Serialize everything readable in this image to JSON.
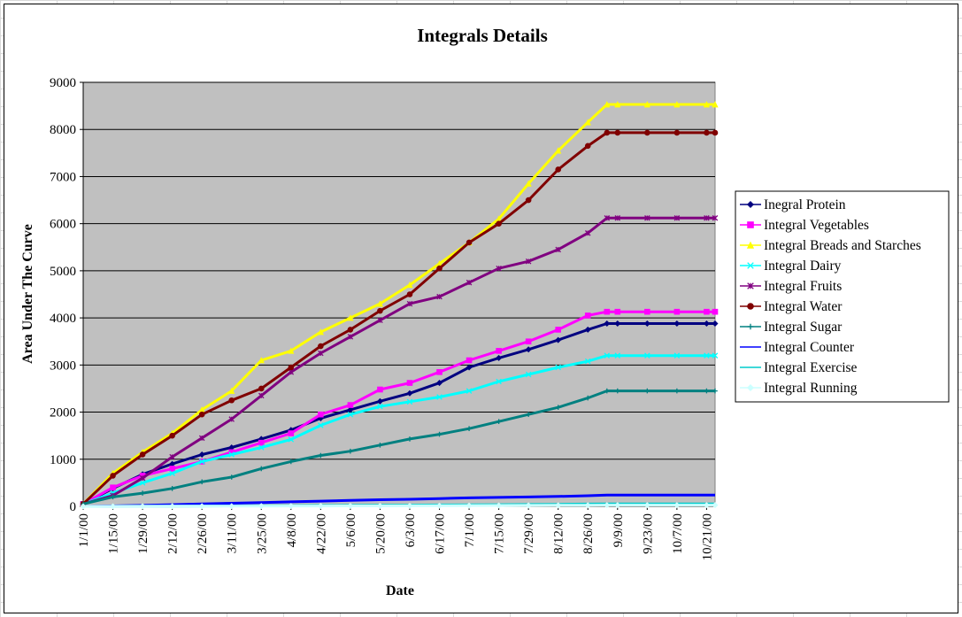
{
  "chart_data": {
    "type": "line",
    "title": "Integrals Details",
    "xlabel": "Date",
    "ylabel": "Area Under The Curve",
    "ylim": [
      0,
      9000
    ],
    "yticks": [
      "0",
      "1000",
      "2000",
      "3000",
      "4000",
      "5000",
      "6000",
      "7000",
      "8000",
      "9000"
    ],
    "xticks": [
      "1/1/00",
      "1/15/00",
      "1/29/00",
      "2/12/00",
      "2/26/00",
      "3/11/00",
      "3/25/00",
      "4/8/00",
      "4/22/00",
      "5/6/00",
      "5/20/00",
      "6/3/00",
      "6/17/00",
      "7/1/00",
      "7/15/00",
      "7/29/00",
      "8/12/00",
      "8/26/00",
      "9/9/00",
      "9/23/00",
      "10/7/00",
      "10/21/00"
    ],
    "x_domain": [
      "1/1/00",
      "10/25/00"
    ],
    "plot_background": "#c0c0c0",
    "grid": true,
    "legend_position": "right",
    "x": [
      "1/1/00",
      "1/15/00",
      "1/29/00",
      "2/12/00",
      "2/26/00",
      "3/11/00",
      "3/25/00",
      "4/8/00",
      "4/22/00",
      "5/6/00",
      "5/20/00",
      "6/3/00",
      "6/17/00",
      "7/1/00",
      "7/15/00",
      "7/29/00",
      "8/12/00",
      "8/26/00",
      "9/4/00",
      "9/9/00",
      "9/23/00",
      "10/7/00",
      "10/21/00",
      "10/25/00"
    ],
    "series": [
      {
        "name": "Inegral Protein",
        "color": "#000080",
        "marker": "diamond",
        "values": [
          50,
          380,
          680,
          900,
          1100,
          1250,
          1430,
          1620,
          1870,
          2050,
          2230,
          2400,
          2620,
          2950,
          3150,
          3330,
          3530,
          3750,
          3880,
          3880,
          3880,
          3880,
          3880,
          3880
        ]
      },
      {
        "name": "Integral Vegetables",
        "color": "#ff00ff",
        "marker": "square",
        "values": [
          50,
          400,
          650,
          800,
          950,
          1150,
          1350,
          1550,
          1950,
          2150,
          2480,
          2620,
          2850,
          3100,
          3300,
          3500,
          3750,
          4050,
          4130,
          4130,
          4130,
          4130,
          4130,
          4130
        ]
      },
      {
        "name": "Integral Breads and Starches",
        "color": "#ffff00",
        "marker": "triangle",
        "values": [
          50,
          700,
          1150,
          1550,
          2050,
          2450,
          3100,
          3300,
          3700,
          4000,
          4300,
          4700,
          5150,
          5600,
          6100,
          6850,
          7550,
          8150,
          8530,
          8530,
          8530,
          8530,
          8530,
          8530
        ]
      },
      {
        "name": "Integral Dairy",
        "color": "#00ffff",
        "marker": "x",
        "values": [
          50,
          280,
          500,
          700,
          950,
          1100,
          1250,
          1420,
          1720,
          1950,
          2120,
          2220,
          2320,
          2450,
          2650,
          2800,
          2950,
          3080,
          3200,
          3200,
          3200,
          3200,
          3200,
          3200
        ]
      },
      {
        "name": "Integral Fruits",
        "color": "#800080",
        "marker": "star",
        "values": [
          50,
          230,
          600,
          1050,
          1450,
          1850,
          2350,
          2850,
          3250,
          3600,
          3950,
          4300,
          4450,
          4750,
          5050,
          5200,
          5450,
          5800,
          6120,
          6120,
          6120,
          6120,
          6120,
          6120
        ]
      },
      {
        "name": "Integral Water",
        "color": "#800000",
        "marker": "circle",
        "values": [
          50,
          650,
          1100,
          1500,
          1950,
          2250,
          2500,
          2950,
          3400,
          3750,
          4150,
          4500,
          5050,
          5600,
          6000,
          6500,
          7150,
          7650,
          7930,
          7930,
          7930,
          7930,
          7930,
          7930
        ]
      },
      {
        "name": "Integral Sugar",
        "color": "#008080",
        "marker": "plus",
        "values": [
          50,
          200,
          280,
          380,
          520,
          620,
          800,
          950,
          1080,
          1170,
          1300,
          1430,
          1530,
          1650,
          1800,
          1950,
          2100,
          2300,
          2450,
          2450,
          2450,
          2450,
          2450,
          2450
        ]
      },
      {
        "name": "Integral Counter",
        "color": "#0000ff",
        "marker": "none",
        "values": [
          0,
          10,
          20,
          35,
          50,
          65,
          80,
          95,
          110,
          125,
          140,
          150,
          165,
          180,
          190,
          200,
          210,
          225,
          240,
          240,
          240,
          240,
          240,
          240
        ]
      },
      {
        "name": "Integral Exercise",
        "color": "#00cccc",
        "marker": "none",
        "values": [
          0,
          2,
          4,
          6,
          8,
          10,
          12,
          15,
          18,
          20,
          23,
          26,
          30,
          33,
          36,
          40,
          44,
          48,
          52,
          52,
          52,
          52,
          52,
          52
        ]
      },
      {
        "name": "Integral Running",
        "color": "#ccffff",
        "marker": "diamond",
        "values": [
          0,
          1,
          2,
          3,
          4,
          5,
          6,
          7,
          8,
          9,
          10,
          12,
          14,
          16,
          18,
          20,
          22,
          24,
          26,
          26,
          26,
          26,
          26,
          26
        ]
      }
    ]
  }
}
